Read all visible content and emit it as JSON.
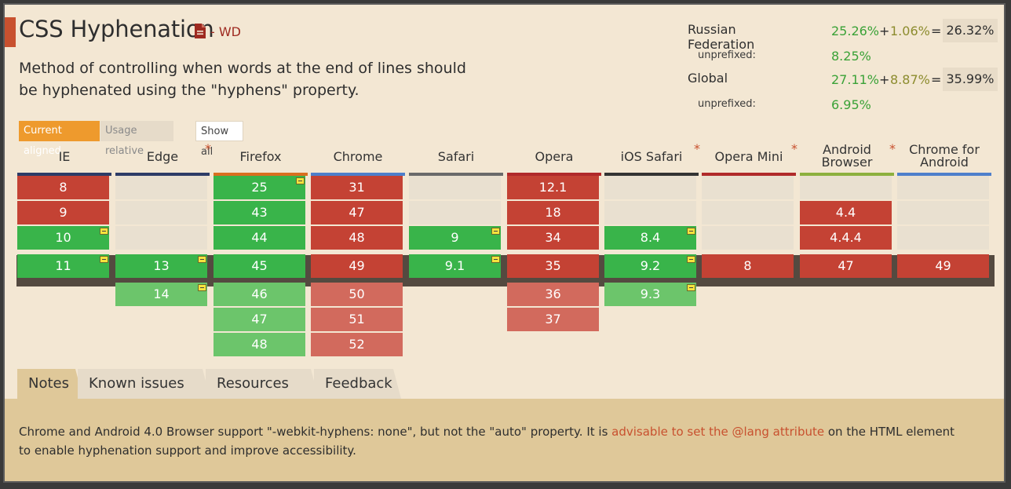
{
  "feature": {
    "title": "CSS Hyphenation",
    "status": "- WD",
    "description": "Method of controlling when words at the end of lines should be hyphenated using the \"hyphens\" property."
  },
  "stats": {
    "region": {
      "name": "Russian Federation",
      "supported": "25.26%",
      "plus": "+",
      "partial": "1.06%",
      "equals": "=",
      "total": "26.32%",
      "unprefixed_label": "unprefixed:",
      "unprefixed": "8.25%"
    },
    "global": {
      "name": "Global",
      "supported": "27.11%",
      "plus": "+",
      "partial": "8.87%",
      "equals": "=",
      "total": "35.99%",
      "unprefixed_label": "unprefixed:",
      "unprefixed": "6.95%"
    }
  },
  "controls": {
    "current_aligned": "Current aligned",
    "usage_relative": "Usage relative",
    "show_all": "Show all"
  },
  "colors": {
    "supported": "#39b44a",
    "unsupported": "#c44234",
    "unknown": "#e9e0d0",
    "accent": "#c8512f"
  },
  "browsers": [
    {
      "name_lines": [
        "IE"
      ],
      "star": "",
      "line_color": "#2d3c67",
      "past": [
        {
          "v": "8",
          "s": "n"
        },
        {
          "v": "9",
          "s": "n"
        },
        {
          "v": "10",
          "s": "y",
          "note": true
        }
      ],
      "current": {
        "v": "11",
        "s": "y",
        "note": true
      },
      "future": []
    },
    {
      "name_lines": [
        "Edge"
      ],
      "star": "*",
      "line_color": "#2d3c67",
      "past": [
        {
          "v": "",
          "s": "u"
        },
        {
          "v": "",
          "s": "u"
        },
        {
          "v": "",
          "s": "u"
        }
      ],
      "current": {
        "v": "13",
        "s": "y",
        "note": true
      },
      "future": [
        {
          "v": "14",
          "s": "yf",
          "note": true
        }
      ]
    },
    {
      "name_lines": [
        "Firefox"
      ],
      "star": "",
      "line_color": "#d96f1f",
      "past": [
        {
          "v": "25",
          "s": "y",
          "note": true
        },
        {
          "v": "43",
          "s": "y"
        },
        {
          "v": "44",
          "s": "y"
        }
      ],
      "current": {
        "v": "45",
        "s": "y"
      },
      "future": [
        {
          "v": "46",
          "s": "yf"
        },
        {
          "v": "47",
          "s": "yf"
        },
        {
          "v": "48",
          "s": "yf"
        }
      ]
    },
    {
      "name_lines": [
        "Chrome"
      ],
      "star": "",
      "line_color": "#4e7fcb",
      "past": [
        {
          "v": "31",
          "s": "n"
        },
        {
          "v": "47",
          "s": "n"
        },
        {
          "v": "48",
          "s": "n"
        }
      ],
      "current": {
        "v": "49",
        "s": "n"
      },
      "future": [
        {
          "v": "50",
          "s": "nf"
        },
        {
          "v": "51",
          "s": "nf"
        },
        {
          "v": "52",
          "s": "nf"
        }
      ]
    },
    {
      "name_lines": [
        "Safari"
      ],
      "star": "",
      "line_color": "#6a6a6a",
      "past": [
        {
          "v": "",
          "s": "u"
        },
        {
          "v": "",
          "s": "u"
        },
        {
          "v": "9",
          "s": "y",
          "note": true
        }
      ],
      "current": {
        "v": "9.1",
        "s": "y",
        "note": true
      },
      "future": []
    },
    {
      "name_lines": [
        "Opera"
      ],
      "star": "",
      "line_color": "#b02a2a",
      "past": [
        {
          "v": "12.1",
          "s": "n"
        },
        {
          "v": "18",
          "s": "n"
        },
        {
          "v": "34",
          "s": "n"
        }
      ],
      "current": {
        "v": "35",
        "s": "n"
      },
      "future": [
        {
          "v": "36",
          "s": "nf"
        },
        {
          "v": "37",
          "s": "nf"
        }
      ]
    },
    {
      "name_lines": [
        "iOS Safari"
      ],
      "star": "*",
      "line_color": "#333333",
      "past": [
        {
          "v": "",
          "s": "u"
        },
        {
          "v": "",
          "s": "u"
        },
        {
          "v": "8.4",
          "s": "y",
          "note": true
        }
      ],
      "current": {
        "v": "9.2",
        "s": "y",
        "note": true
      },
      "future": [
        {
          "v": "9.3",
          "s": "yf",
          "note": true
        }
      ]
    },
    {
      "name_lines": [
        "Opera Mini"
      ],
      "star": "*",
      "line_color": "#b02a2a",
      "past": [
        {
          "v": "",
          "s": "u"
        },
        {
          "v": "",
          "s": "u"
        },
        {
          "v": "",
          "s": "u"
        }
      ],
      "current": {
        "v": "8",
        "s": "n"
      },
      "future": []
    },
    {
      "name_lines": [
        "Android",
        "Browser"
      ],
      "star": "*",
      "line_color": "#8cb03e",
      "past": [
        {
          "v": "",
          "s": "u"
        },
        {
          "v": "4.4",
          "s": "n"
        },
        {
          "v": "4.4.4",
          "s": "n"
        }
      ],
      "current": {
        "v": "47",
        "s": "n"
      },
      "future": []
    },
    {
      "name_lines": [
        "Chrome for",
        "Android"
      ],
      "star": "",
      "line_color": "#4e7fcb",
      "past": [
        {
          "v": "",
          "s": "u"
        },
        {
          "v": "",
          "s": "u"
        },
        {
          "v": "",
          "s": "u"
        }
      ],
      "current": {
        "v": "49",
        "s": "n"
      },
      "future": []
    }
  ],
  "tabs": [
    {
      "label": "Notes",
      "active": true
    },
    {
      "label": "Known issues (0)",
      "active": false
    },
    {
      "label": "Resources (5)",
      "active": false
    },
    {
      "label": "Feedback",
      "active": false
    }
  ],
  "notes": {
    "text_before": "Chrome and Android 4.0 Browser support \"-webkit-hyphens: none\", but not the \"auto\" property. It is ",
    "link": "advisable to set the @lang attribute",
    "text_after": " on the HTML element to enable hyphenation support and improve accessibility."
  }
}
